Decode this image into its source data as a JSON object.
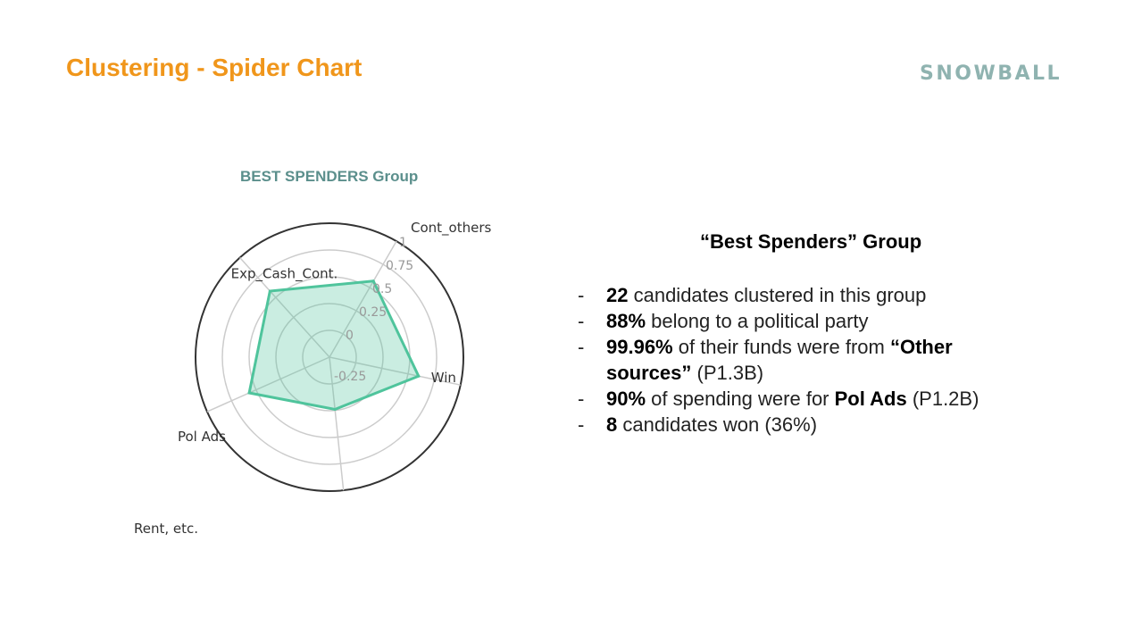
{
  "slide": {
    "title": "Clustering - Spider Chart",
    "logo_text": "SNOWBALL",
    "accent_color": "#f0961b",
    "logo_color": "#8fb3b0"
  },
  "chart_data": {
    "type": "radar",
    "title": "BEST SPENDERS Group",
    "axes": [
      "Cont_others",
      "Exp_Cash_Cont.",
      "Pol Ads",
      "Rent, etc.",
      "Win"
    ],
    "values": [
      0.57,
      0.58,
      0.57,
      0.24,
      0.6
    ],
    "r_range": [
      -0.25,
      1
    ],
    "r_ticks": [
      "-0.25",
      "0",
      "0.25",
      "0.5",
      "0.75",
      "1"
    ],
    "grid": true,
    "series_color": "#4fc49c"
  },
  "summary": {
    "heading": "“Best Spenders” Group",
    "bullets": [
      {
        "dash": "-",
        "bold": "22",
        "text": " candidates clustered in this group"
      },
      {
        "dash": "-",
        "bold": "88%",
        "text": " belong to a political party"
      },
      {
        "dash": "-",
        "bold": "99.96%",
        "text": " of their funds were from ",
        "bold2": "“Other sources”",
        "text2": " (P1.3B)"
      },
      {
        "dash": "-",
        "bold": "90%",
        "text": " of spending were for ",
        "bold2": "Pol Ads",
        "text2": " (P1.2B)"
      },
      {
        "dash": "-",
        "bold": "8",
        "text": " candidates won (36%)"
      }
    ]
  }
}
